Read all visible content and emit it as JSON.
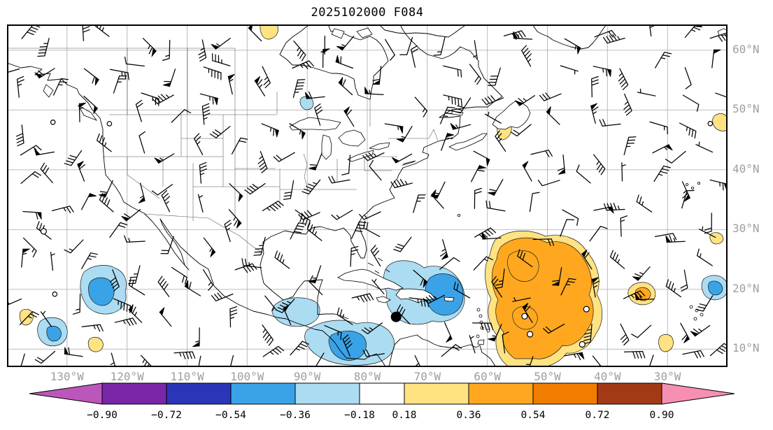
{
  "title": "2025102000 F084",
  "colors": {
    "grid": "#b3b3b3",
    "axis_label": "#9e9e9e",
    "coast": "#000000",
    "barb": "#000000"
  },
  "chart_data": {
    "type": "heatmap",
    "subtype": "wind-barb-anomaly-map",
    "title": "2025102000 F084",
    "extent": {
      "lon_min": -140,
      "lon_max": -20,
      "lat_min": 7.0,
      "lat_max": 64.3
    },
    "x_axis": {
      "tick_lons": [
        -130,
        -120,
        -110,
        -100,
        -90,
        -80,
        -70,
        -60,
        -50,
        -40,
        -30
      ],
      "tick_labels": [
        "130°W",
        "120°W",
        "110°W",
        "100°W",
        "90°W",
        "80°W",
        "70°W",
        "60°W",
        "50°W",
        "40°W",
        "30°W"
      ]
    },
    "y_axis": {
      "tick_lats": [
        60,
        50,
        40,
        30,
        20,
        10
      ],
      "tick_labels": [
        "60°N",
        "50°N",
        "40°N",
        "30°N",
        "20°N",
        "10°N"
      ]
    },
    "colorbar": {
      "levels": [
        -0.9,
        -0.72,
        -0.54,
        -0.36,
        -0.18,
        0.18,
        0.36,
        0.54,
        0.72,
        0.9
      ],
      "tick_labels": [
        "−0.90",
        "−0.72",
        "−0.54",
        "−0.36",
        "−0.18",
        "0.18",
        "0.36",
        "0.54",
        "0.72",
        "0.90"
      ],
      "colors": [
        "#bb57bb",
        "#7a26a8",
        "#2b35b8",
        "#3aa3e8",
        "#abdcf2",
        "#ffffff",
        "#ffe282",
        "#ffa81f",
        "#f07c00",
        "#a33a17",
        "#f78fb2"
      ],
      "extend": "both"
    },
    "shaded_regions": [
      {
        "area": "central Caribbean east of Cuba and Hispaniola",
        "band_min": -0.54,
        "band_max": -0.18
      },
      {
        "area": "southwest Caribbean near Panama and Colombia",
        "band_min": -0.54,
        "band_max": -0.18
      },
      {
        "area": "Pacific coast off Guatemala / Yucatan",
        "band_min": -0.36,
        "band_max": -0.18
      },
      {
        "area": "east Pacific near 125W 16N",
        "band_min": -0.54,
        "band_max": -0.18
      },
      {
        "area": "east Pacific near 131W 9N",
        "band_min": -0.54,
        "band_max": -0.18
      },
      {
        "area": "tropical Atlantic 57W-44W 7N-25N",
        "band_min": 0.18,
        "band_max": 0.54
      },
      {
        "area": "central Atlantic near 33W 16N",
        "band_min": 0.18,
        "band_max": 0.54
      },
      {
        "area": "eastern Atlantic near 21W 16N",
        "band_min": -0.54,
        "band_max": -0.18
      },
      {
        "area": "near Newfoundland 56W 47N",
        "band_min": 0.18,
        "band_max": 0.36
      },
      {
        "area": "subarctic near 96W 63N",
        "band_min": 0.18,
        "band_max": 0.36
      },
      {
        "area": "eastern Atlantic edge near 20W 48N",
        "band_min": 0.18,
        "band_max": 0.36
      },
      {
        "area": "south of Hudson Bay near 90W 51N",
        "band_min": -0.36,
        "band_max": -0.18
      },
      {
        "area": "scattered small patches along 10N",
        "band_min": 0.18,
        "band_max": 0.36
      }
    ],
    "wind_barbs": {
      "lon_start": -137.5,
      "lon_step": 5,
      "cols": 24,
      "lat_start": 62.0,
      "lat_step": -4.8,
      "rows": 12,
      "seed": 84,
      "synthetic": true
    },
    "storm_marker": {
      "lon": -75.2,
      "lat": 15.4
    },
    "calm_circles": [
      {
        "lon": -133.9,
        "lat": 29.7
      },
      {
        "lon": -43.5,
        "lat": 16.7
      },
      {
        "lon": -44.2,
        "lat": 10.8
      },
      {
        "lon": -53.8,
        "lat": 15.5
      },
      {
        "lon": -52.9,
        "lat": 12.5
      }
    ]
  }
}
